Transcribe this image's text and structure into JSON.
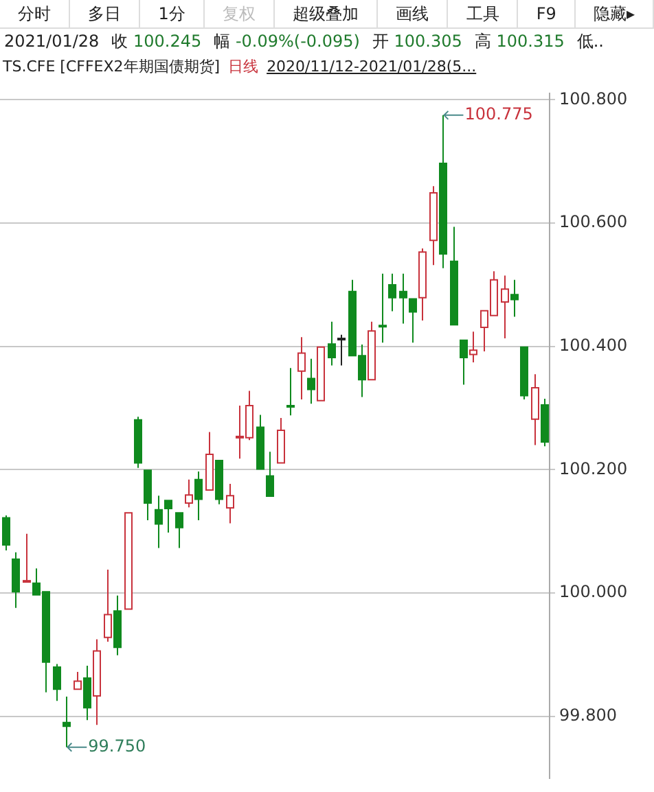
{
  "chart_data": {
    "type": "candlestick",
    "title": "TS.CFE  [CFFEX2年期国债期货]",
    "subtitle": "日线",
    "annotations": [
      "分时",
      "多日",
      "1分",
      "复权",
      "超级叠加",
      "画线",
      "工具",
      "F9",
      "隐藏▸",
      "2021/01/28",
      "收 100.245",
      "幅 -0.09%(-0.095)",
      "开 100.305",
      "高 100.315",
      "低..",
      "2020/11/12-2021/01/28(5...",
      "100.775",
      "99.750"
    ],
    "categories": [
      null,
      null,
      null,
      null,
      null,
      null,
      null,
      null,
      null,
      null,
      null,
      null,
      null,
      null,
      null,
      null,
      null,
      null,
      null,
      null,
      null,
      null,
      null,
      null,
      null,
      null,
      null,
      null,
      null,
      null,
      null,
      null,
      null,
      null,
      null,
      null,
      null,
      null,
      null,
      null,
      null,
      null,
      null,
      null,
      null,
      null,
      null,
      null,
      null,
      null,
      null,
      null,
      null,
      null
    ],
    "ohlc": [
      [
        100.122,
        100.126,
        100.069,
        100.078
      ],
      [
        100.055,
        100.066,
        99.976,
        100.002
      ],
      [
        100.019,
        100.096,
        100.018,
        100.02
      ],
      [
        100.016,
        100.04,
        99.997,
        99.997
      ],
      [
        100.002,
        100.002,
        99.839,
        99.888
      ],
      [
        99.88,
        99.885,
        99.825,
        99.844
      ],
      [
        99.79,
        99.832,
        99.75,
        99.784
      ],
      [
        99.844,
        99.872,
        99.844,
        99.857
      ],
      [
        99.862,
        99.882,
        99.794,
        99.814
      ],
      [
        99.833,
        99.925,
        99.786,
        99.906
      ],
      [
        99.928,
        100.038,
        99.921,
        99.965
      ],
      [
        99.971,
        99.996,
        99.899,
        99.912
      ],
      [
        99.974,
        100.13,
        99.974,
        100.13
      ],
      [
        100.281,
        100.286,
        100.203,
        100.211
      ],
      [
        100.199,
        100.199,
        100.118,
        100.146
      ],
      [
        100.135,
        100.158,
        100.073,
        100.112
      ],
      [
        100.15,
        100.15,
        100.098,
        100.137
      ],
      [
        100.13,
        100.13,
        100.073,
        100.106
      ],
      [
        100.146,
        100.184,
        100.139,
        100.159
      ],
      [
        100.184,
        100.197,
        100.118,
        100.152
      ],
      [
        100.167,
        100.261,
        100.167,
        100.225
      ],
      [
        100.215,
        100.215,
        100.144,
        100.152
      ],
      [
        100.138,
        100.177,
        100.113,
        100.158
      ],
      [
        100.253,
        100.304,
        100.218,
        100.254
      ],
      [
        100.252,
        100.328,
        100.248,
        100.304
      ],
      [
        100.269,
        100.289,
        100.201,
        100.201
      ],
      [
        100.19,
        100.229,
        100.157,
        100.157
      ],
      [
        100.211,
        100.284,
        100.211,
        100.264
      ],
      [
        100.304,
        100.365,
        100.288,
        100.303
      ],
      [
        100.36,
        100.415,
        100.314,
        100.389
      ],
      [
        100.348,
        100.38,
        100.307,
        100.33
      ],
      [
        100.312,
        100.399,
        100.312,
        100.399
      ],
      [
        100.404,
        100.44,
        100.369,
        100.382
      ],
      [
        100.413,
        100.419,
        100.369,
        100.413
      ],
      [
        100.489,
        100.508,
        100.385,
        100.385
      ],
      [
        100.385,
        100.403,
        100.318,
        100.346
      ],
      [
        100.346,
        100.44,
        100.346,
        100.425
      ],
      [
        100.434,
        100.518,
        100.406,
        100.433
      ],
      [
        100.5,
        100.518,
        100.457,
        100.479
      ],
      [
        100.489,
        100.518,
        100.437,
        100.479
      ],
      [
        100.477,
        100.477,
        100.406,
        100.456
      ],
      [
        100.479,
        100.559,
        100.442,
        100.553
      ],
      [
        100.572,
        100.66,
        100.532,
        100.649
      ],
      [
        100.697,
        100.775,
        100.527,
        100.55
      ],
      [
        100.538,
        100.594,
        100.435,
        100.435
      ],
      [
        100.41,
        100.41,
        100.338,
        100.382
      ],
      [
        100.387,
        100.424,
        100.374,
        100.394
      ],
      [
        100.431,
        100.458,
        100.392,
        100.458
      ],
      [
        100.45,
        100.522,
        100.45,
        100.508
      ],
      [
        100.472,
        100.515,
        100.413,
        100.493
      ],
      [
        100.484,
        100.508,
        100.448,
        100.476
      ],
      [
        100.399,
        100.399,
        100.314,
        100.32
      ],
      [
        100.282,
        100.355,
        100.24,
        100.333
      ],
      [
        100.305,
        100.315,
        100.238,
        100.245
      ]
    ],
    "colors": [
      "#0f8a1e",
      "#0f8a1e",
      "#c8323c",
      "#0f8a1e",
      "#0f8a1e",
      "#0f8a1e",
      "#0f8a1e",
      "#c8323c",
      "#0f8a1e",
      "#c8323c",
      "#c8323c",
      "#0f8a1e",
      "#c8323c",
      "#0f8a1e",
      "#0f8a1e",
      "#0f8a1e",
      "#0f8a1e",
      "#0f8a1e",
      "#c8323c",
      "#0f8a1e",
      "#c8323c",
      "#0f8a1e",
      "#c8323c",
      "#c8323c",
      "#c8323c",
      "#0f8a1e",
      "#0f8a1e",
      "#c8323c",
      "#0f8a1e",
      "#c8323c",
      "#0f8a1e",
      "#c8323c",
      "#0f8a1e",
      "#222222",
      "#0f8a1e",
      "#0f8a1e",
      "#c8323c",
      "#0f8a1e",
      "#0f8a1e",
      "#0f8a1e",
      "#0f8a1e",
      "#c8323c",
      "#c8323c",
      "#0f8a1e",
      "#0f8a1e",
      "#0f8a1e",
      "#c8323c",
      "#c8323c",
      "#c8323c",
      "#c8323c",
      "#0f8a1e",
      "#0f8a1e",
      "#c8323c",
      "#0f8a1e"
    ],
    "ylim": [
      99.7,
      100.81
    ],
    "yticks": [
      {
        "value": 99.8,
        "label": "99.800"
      },
      {
        "value": 100,
        "label": "100.000"
      },
      {
        "value": 100.2,
        "label": "100.200"
      },
      {
        "value": 100.4,
        "label": "100.400"
      },
      {
        "value": 100.6,
        "label": "100.600"
      },
      {
        "value": 100.8,
        "label": "100.800"
      }
    ],
    "grid": "y",
    "legend": false
  }
}
